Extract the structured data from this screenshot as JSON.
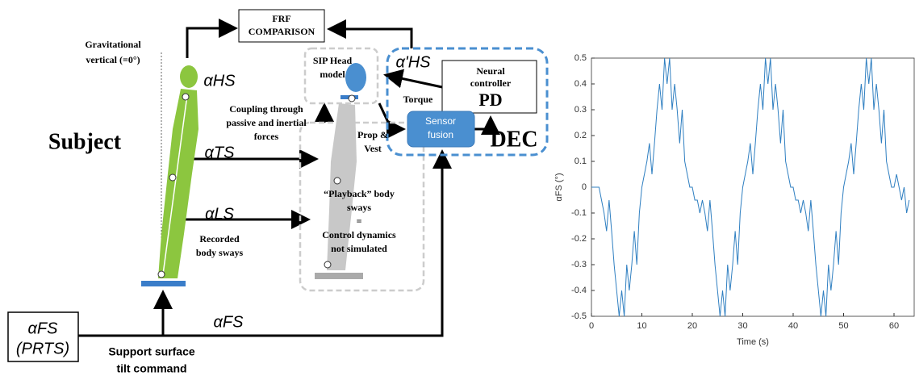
{
  "diagram": {
    "frf": [
      "FRF",
      "COMPARISON"
    ],
    "gravity": [
      "Gravitational",
      "vertical (=0°)"
    ],
    "subject": "Subject",
    "alpha_hs": "αHS",
    "alpha_ts": "αTS",
    "alpha_ls": "αLS",
    "alpha_hs_prime": "α'HS",
    "sip": [
      "SIP Head",
      "model"
    ],
    "neural": [
      "Neural",
      "controller"
    ],
    "pd": "PD",
    "torque": "Torque",
    "sensor": [
      "Sensor",
      "fusion"
    ],
    "dec": "DEC",
    "coupling": [
      "Coupling through",
      "passive and inertial",
      "forces"
    ],
    "prop": [
      "Prop  &",
      "Vest"
    ],
    "playback": [
      "“Playback” body",
      "sways",
      "=",
      "Control dynamics",
      "not simulated"
    ],
    "recorded": [
      "Recorded",
      "body sways"
    ],
    "alpha_fs_box": [
      "αFS",
      "(PRTS)"
    ],
    "alpha_fs": "αFS",
    "support": [
      "Support surface",
      "tilt command"
    ]
  },
  "chart_data": {
    "type": "line",
    "x_label": "Time (s)",
    "y_label": "αFS (°)",
    "color": "#2f7fc1",
    "xlim": [
      0,
      64
    ],
    "xticks": [
      0,
      10,
      20,
      30,
      40,
      50,
      60
    ],
    "ylim": [
      -0.5,
      0.5
    ],
    "yticks": [
      -0.5,
      -0.4,
      -0.3,
      -0.2,
      -0.1,
      0,
      0.1,
      0.2,
      0.3,
      0.4,
      0.5
    ],
    "x": [
      0,
      0.5,
      1,
      1.5,
      2,
      2.5,
      3,
      3.5,
      4,
      4.5,
      5,
      5.5,
      6,
      6.5,
      7,
      7.5,
      8,
      8.5,
      9,
      9.5,
      10,
      10.5,
      11,
      11.5,
      12,
      12.5,
      13,
      13.5,
      14,
      14.5,
      15,
      15.5,
      16,
      16.5,
      17,
      17.5,
      18,
      18.5,
      19,
      19.5,
      20,
      20.5,
      21,
      21.5,
      22,
      22.5,
      23,
      23.5,
      24,
      24.5,
      25,
      25.5,
      26,
      26.5,
      27,
      27.5,
      28,
      28.5,
      29,
      29.5,
      30,
      30.5,
      31,
      31.5,
      32,
      32.5,
      33,
      33.5,
      34,
      34.5,
      35,
      35.5,
      36,
      36.5,
      37,
      37.5,
      38,
      38.5,
      39,
      39.5,
      40,
      40.5,
      41,
      41.5,
      42,
      42.5,
      43,
      43.5,
      44,
      44.5,
      45,
      45.5,
      46,
      46.5,
      47,
      47.5,
      48,
      48.5,
      49,
      49.5,
      50,
      50.5,
      51,
      51.5,
      52,
      52.5,
      53,
      53.5,
      54,
      54.5,
      55,
      55.5,
      56,
      56.5,
      57,
      57.5,
      58,
      58.5,
      59,
      59.5,
      60,
      60.5,
      61,
      61.5,
      62,
      62.5,
      63
    ],
    "values": [
      0,
      0,
      0,
      0,
      -0.05,
      -0.1,
      -0.17,
      -0.05,
      -0.17,
      -0.3,
      -0.4,
      -0.5,
      -0.4,
      -0.5,
      -0.3,
      -0.4,
      -0.3,
      -0.17,
      -0.3,
      -0.1,
      0,
      0.05,
      0.1,
      0.17,
      0.05,
      0.17,
      0.3,
      0.4,
      0.3,
      0.5,
      0.4,
      0.5,
      0.3,
      0.4,
      0.3,
      0.17,
      0.3,
      0.1,
      0.05,
      0,
      0,
      -0.05,
      -0.05,
      -0.1,
      -0.05,
      -0.1,
      -0.17,
      -0.05,
      -0.17,
      -0.3,
      -0.4,
      -0.5,
      -0.4,
      -0.5,
      -0.3,
      -0.4,
      -0.3,
      -0.17,
      -0.3,
      -0.1,
      0,
      0.05,
      0.1,
      0.17,
      0.05,
      0.17,
      0.3,
      0.4,
      0.3,
      0.5,
      0.4,
      0.5,
      0.3,
      0.4,
      0.3,
      0.17,
      0.3,
      0.1,
      0.05,
      0,
      0,
      -0.05,
      -0.05,
      -0.1,
      -0.05,
      -0.1,
      -0.17,
      -0.05,
      -0.17,
      -0.3,
      -0.4,
      -0.5,
      -0.4,
      -0.5,
      -0.3,
      -0.4,
      -0.3,
      -0.17,
      -0.3,
      -0.1,
      0,
      0.05,
      0.1,
      0.17,
      0.05,
      0.17,
      0.3,
      0.4,
      0.3,
      0.5,
      0.4,
      0.5,
      0.3,
      0.4,
      0.3,
      0.17,
      0.3,
      0.1,
      0.05,
      0,
      0,
      0.05,
      0,
      -0.05,
      0,
      -0.1,
      -0.05
    ]
  }
}
